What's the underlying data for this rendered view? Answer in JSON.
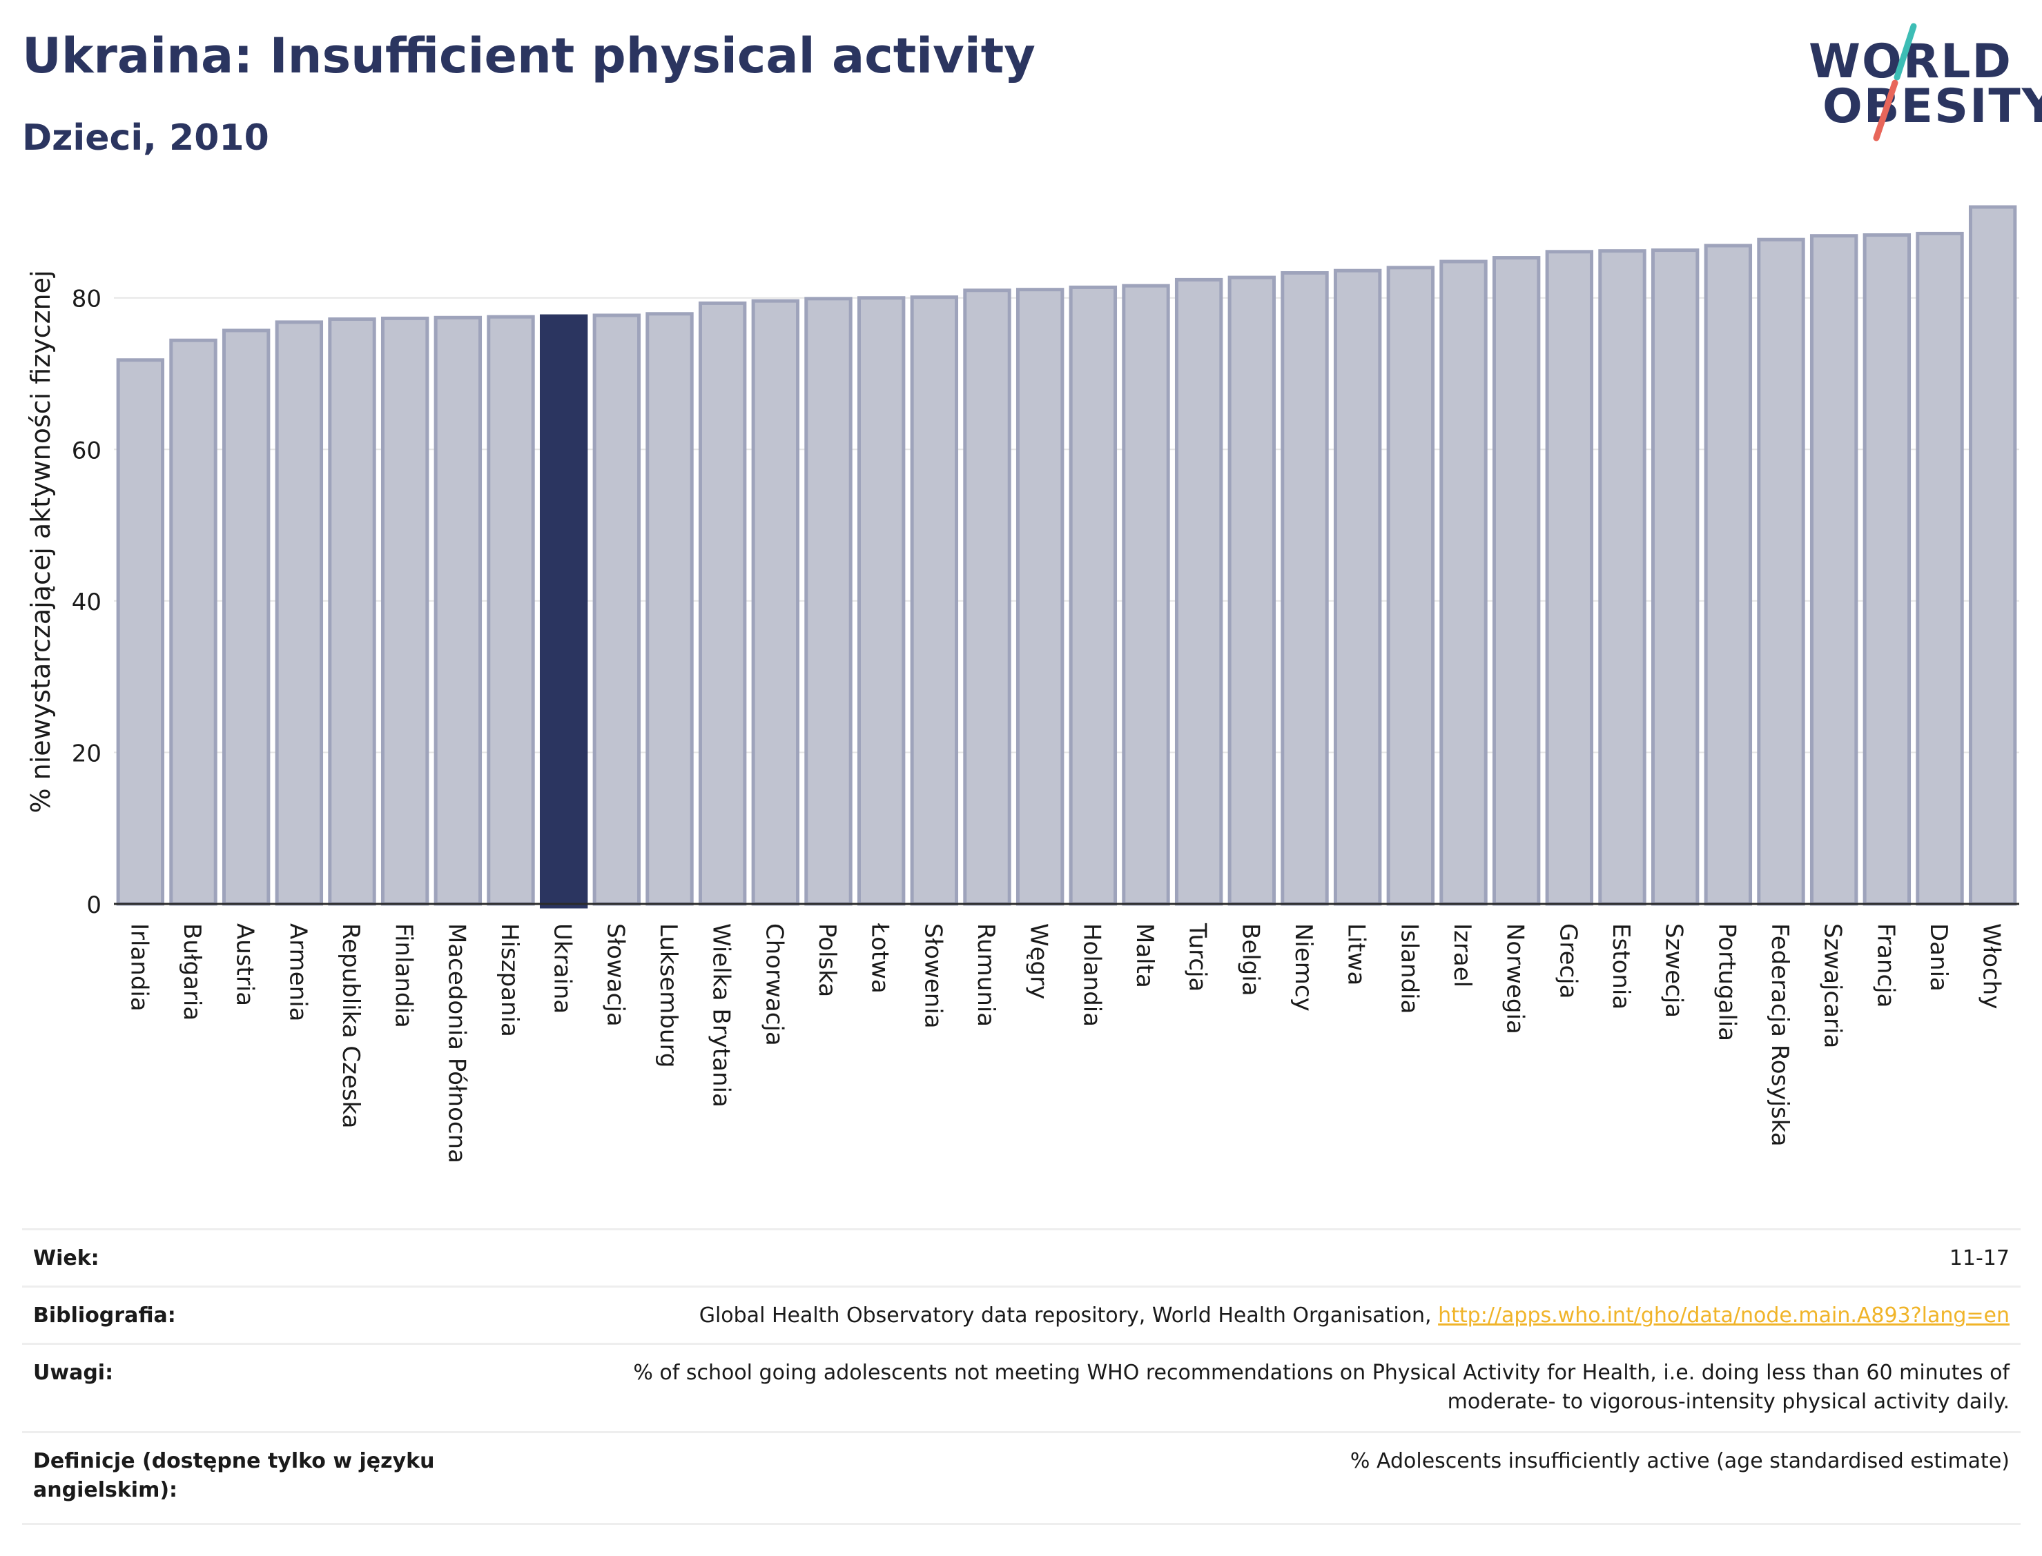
{
  "header": {
    "title": "Ukraina: Insufficient physical activity",
    "subtitle": "Dzieci, 2010"
  },
  "logo": {
    "line1": "WORLD",
    "line2": "OBESITY",
    "slash_colors": [
      "#3dbdb5",
      "#e8665a"
    ]
  },
  "colors": {
    "bar": "#c0c3d0",
    "bar_border": "#9ea3bb",
    "highlight": "#2b3560",
    "text": "#2b3560",
    "link": "#f0b429"
  },
  "chart_data": {
    "type": "bar",
    "ylabel": "% niewystarczającej aktywności fizycznej",
    "xlabel": "",
    "ylim": [
      0,
      92
    ],
    "yticks": [
      0,
      20,
      40,
      60,
      80
    ],
    "grid": true,
    "highlight": "Ukraina",
    "categories": [
      "Irlandia",
      "Bułgaria",
      "Austria",
      "Armenia",
      "Republika Czeska",
      "Finlandia",
      "Macedonia Północna",
      "Hiszpania",
      "Ukraina",
      "Słowacja",
      "Luksemburg",
      "Wielka Brytania",
      "Chorwacja",
      "Polska",
      "Łotwa",
      "Słowenia",
      "Rumunia",
      "Węgry",
      "Holandia",
      "Malta",
      "Turcja",
      "Belgia",
      "Niemcy",
      "Litwa",
      "Islandia",
      "Izrael",
      "Norwegia",
      "Grecja",
      "Estonia",
      "Szwecja",
      "Portugalia",
      "Federacja Rosyjska",
      "Szwajcaria",
      "Francja",
      "Dania",
      "Włochy"
    ],
    "values": [
      71.8,
      74.4,
      75.7,
      76.8,
      77.2,
      77.3,
      77.4,
      77.5,
      77.6,
      77.7,
      77.9,
      79.3,
      79.6,
      79.9,
      80.0,
      80.1,
      81.0,
      81.1,
      81.4,
      81.6,
      82.4,
      82.7,
      83.3,
      83.6,
      84.0,
      84.8,
      85.3,
      86.1,
      86.2,
      86.3,
      86.9,
      87.7,
      88.2,
      88.3,
      88.5,
      92.0
    ]
  },
  "info_table": [
    {
      "label": "Wiek:",
      "value": "11-17"
    },
    {
      "label": "Bibliografia:",
      "value": "Global Health Observatory data repository, World Health Organisation,",
      "link": "http://apps.who.int/gho/data/node.main.A893?lang=en"
    },
    {
      "label": "Uwagi:",
      "value": "% of school going adolescents not meeting WHO recommendations on Physical Activity for Health, i.e. doing less than 60 minutes of moderate- to vigorous-intensity physical activity daily."
    },
    {
      "label": "Definicje (dostępne tylko w języku angielskim):",
      "value": "% Adolescents insufficiently active (age standardised estimate)"
    }
  ]
}
